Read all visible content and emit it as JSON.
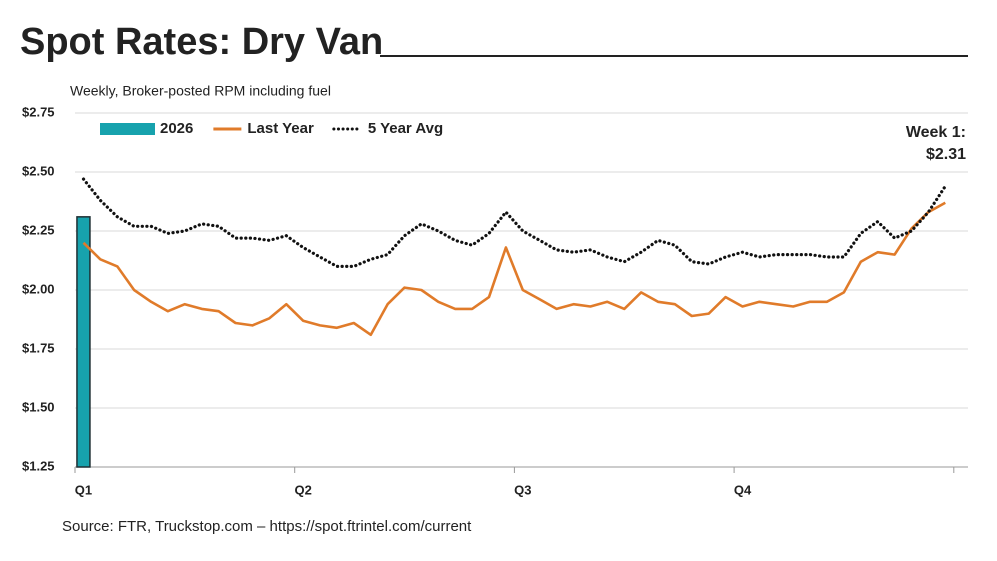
{
  "chart_data": {
    "type": "bar-line",
    "title": "Spot Rates: Dry Van",
    "subtitle": "Weekly, Broker-posted RPM including fuel",
    "source": "Source: FTR, Truckstop.com – https://spot.ftrintel.com/current",
    "annotation": [
      "Week 1:",
      "$2.31"
    ],
    "categories": [
      "Q1",
      null,
      null,
      null,
      null,
      null,
      null,
      null,
      null,
      null,
      null,
      null,
      null,
      "Q2",
      null,
      null,
      null,
      null,
      null,
      null,
      null,
      null,
      null,
      null,
      null,
      null,
      "Q3",
      null,
      null,
      null,
      null,
      null,
      null,
      null,
      null,
      null,
      null,
      null,
      null,
      "Q4",
      null,
      null,
      null,
      null,
      null,
      null,
      null,
      null,
      null,
      null,
      null,
      null
    ],
    "series": [
      {
        "name": "2026",
        "type": "bar",
        "color": "#17a2ad",
        "values": [
          2.31,
          null,
          null,
          null,
          null,
          null,
          null,
          null,
          null,
          null,
          null,
          null,
          null,
          null,
          null,
          null,
          null,
          null,
          null,
          null,
          null,
          null,
          null,
          null,
          null,
          null,
          null,
          null,
          null,
          null,
          null,
          null,
          null,
          null,
          null,
          null,
          null,
          null,
          null,
          null,
          null,
          null,
          null,
          null,
          null,
          null,
          null,
          null,
          null,
          null,
          null,
          null
        ]
      },
      {
        "name": "Last Year",
        "type": "line",
        "color": "#e07b2a",
        "values": [
          2.2,
          2.13,
          2.1,
          2.0,
          1.95,
          1.91,
          1.94,
          1.92,
          1.91,
          1.86,
          1.85,
          1.88,
          1.94,
          1.87,
          1.85,
          1.84,
          1.86,
          1.81,
          1.94,
          2.01,
          2.0,
          1.95,
          1.92,
          1.92,
          1.97,
          2.18,
          2.0,
          1.96,
          1.92,
          1.94,
          1.93,
          1.95,
          1.92,
          1.99,
          1.95,
          1.94,
          1.89,
          1.9,
          1.97,
          1.93,
          1.95,
          1.94,
          1.93,
          1.95,
          1.95,
          1.99,
          2.12,
          2.16,
          2.15,
          2.26,
          2.33,
          2.37
        ]
      },
      {
        "name": "5 Year Avg",
        "type": "line",
        "dotted": true,
        "color": "#111111",
        "values": [
          2.47,
          2.38,
          2.31,
          2.27,
          2.27,
          2.24,
          2.25,
          2.28,
          2.27,
          2.22,
          2.22,
          2.21,
          2.23,
          2.18,
          2.14,
          2.1,
          2.1,
          2.13,
          2.15,
          2.23,
          2.28,
          2.25,
          2.21,
          2.19,
          2.24,
          2.33,
          2.25,
          2.21,
          2.17,
          2.16,
          2.17,
          2.14,
          2.12,
          2.16,
          2.21,
          2.19,
          2.12,
          2.11,
          2.14,
          2.16,
          2.14,
          2.15,
          2.15,
          2.15,
          2.14,
          2.14,
          2.24,
          2.29,
          2.22,
          2.25,
          2.33,
          2.44
        ]
      }
    ],
    "ylim": [
      1.25,
      2.75
    ],
    "yticks": [
      {
        "value": 1.25,
        "label": "$1.25"
      },
      {
        "value": 1.5,
        "label": "$1.50"
      },
      {
        "value": 1.75,
        "label": "$1.75"
      },
      {
        "value": 2,
        "label": "$2.00"
      },
      {
        "value": 2.25,
        "label": "$2.25"
      },
      {
        "value": 2.5,
        "label": "$2.50"
      },
      {
        "value": 2.75,
        "label": "$2.75"
      }
    ],
    "grid": true
  }
}
